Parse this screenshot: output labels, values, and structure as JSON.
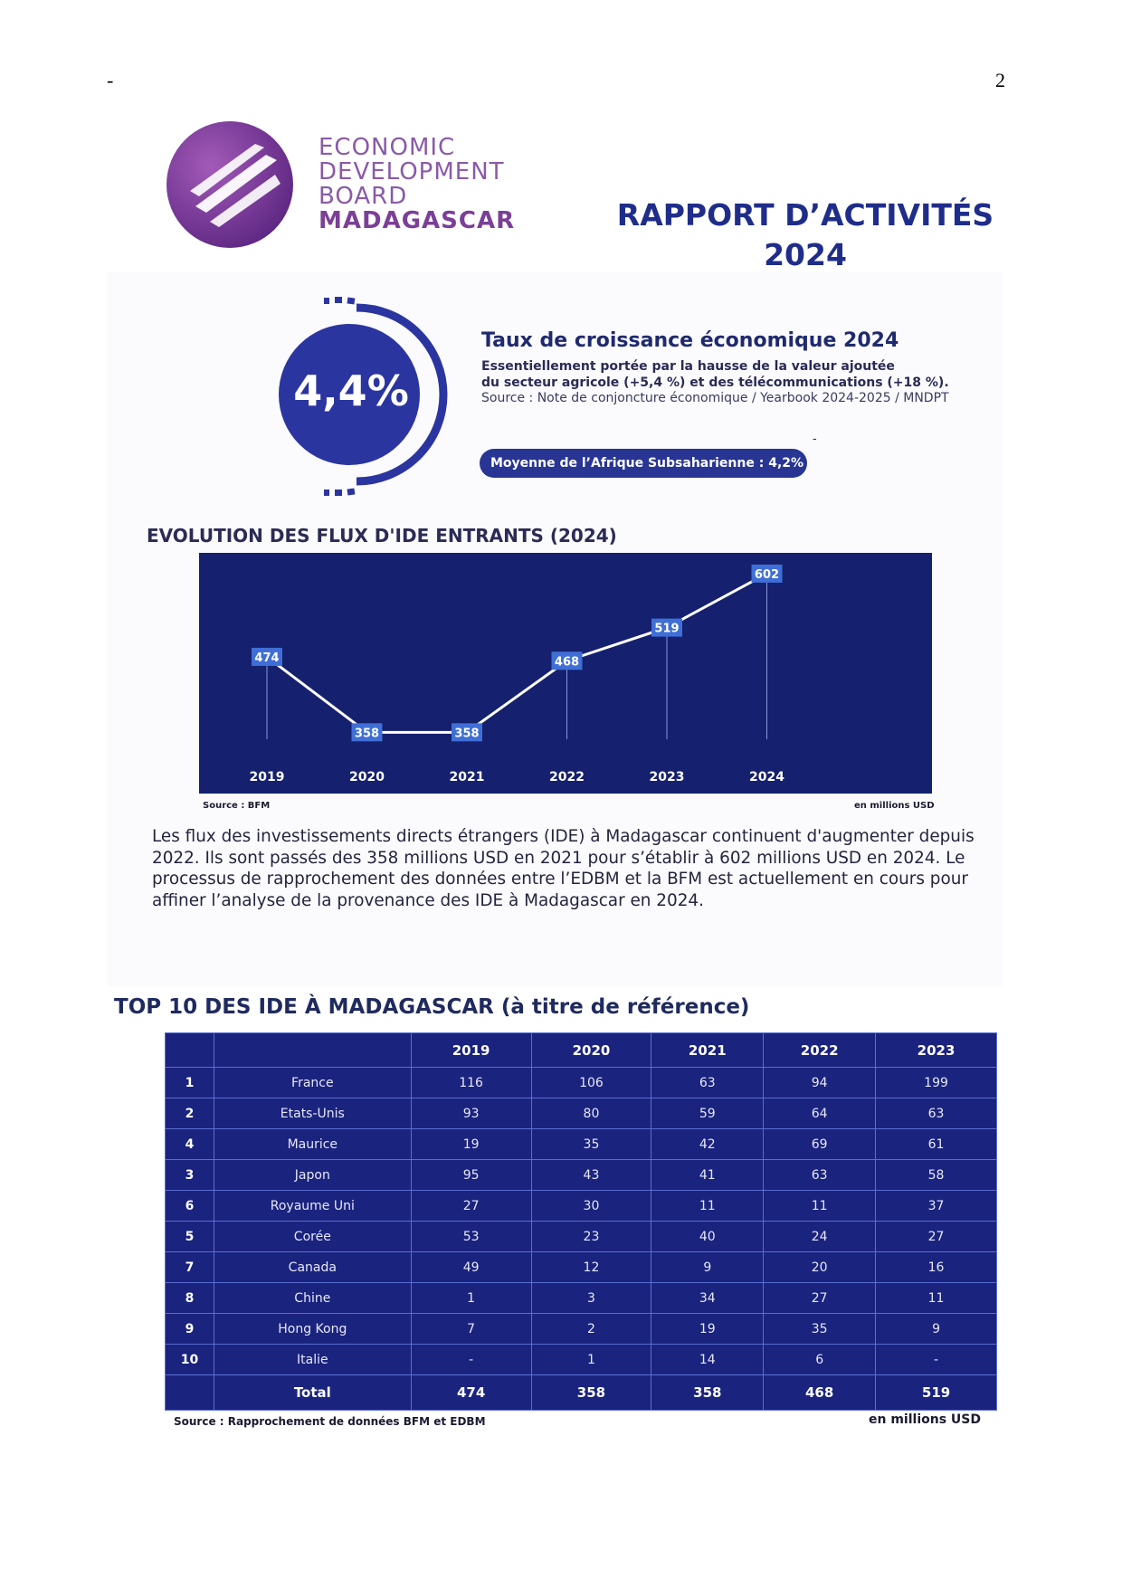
{
  "page": {
    "dash": "-",
    "number": "2"
  },
  "logo": {
    "line1": "ECONOMIC",
    "line2": "DEVELOPMENT",
    "line3": "BOARD",
    "line4": "MADAGASCAR"
  },
  "report": {
    "title_line1": "RAPPORT D’ACTIVITÉS",
    "title_line2": "2024"
  },
  "growth": {
    "value": "4,4%",
    "title": "Taux de croissance économique 2024",
    "desc_line1": "Essentiellement portée par la hausse de la valeur ajoutée",
    "desc_line2": "du secteur agricole (+5,4 %) et des télécommunications (+18 %).",
    "source": "Source : Note de conjoncture économique / Yearbook 2024-2025 / MNDPT",
    "average": "Moyenne de l’Afrique Subsaharienne : 4,2%",
    "dash": "-"
  },
  "chart_data": {
    "type": "line",
    "title": "EVOLUTION DES FLUX D'IDE ENTRANTS (2024)",
    "categories": [
      "2019",
      "2020",
      "2021",
      "2022",
      "2023",
      "2024"
    ],
    "values": [
      474,
      358,
      358,
      468,
      519,
      602
    ],
    "source": "Source : BFM",
    "unit": "en millions USD",
    "accent_color": "#15206e",
    "label_color": "#3f6fd6"
  },
  "body_text": "Les flux des investissements directs étrangers (IDE) à Madagascar continuent d'augmenter depuis 2022. Ils sont passés des 358 millions USD en 2021 pour s’établir à 602 millions USD en 2024. Le processus de rapprochement des données entre l’EDBM et la BFM est actuellement en cours pour affiner l’analyse de la provenance des IDE à Madagascar en 2024.",
  "table": {
    "title": "TOP 10 DES IDE À MADAGASCAR (à titre de référence)",
    "headers": [
      "",
      "",
      "2019",
      "2020",
      "2021",
      "2022",
      "2023"
    ],
    "rows": [
      [
        "1",
        "France",
        "116",
        "106",
        "63",
        "94",
        "199"
      ],
      [
        "2",
        "Etats-Unis",
        "93",
        "80",
        "59",
        "64",
        "63"
      ],
      [
        "4",
        "Maurice",
        "19",
        "35",
        "42",
        "69",
        "61"
      ],
      [
        "3",
        "Japon",
        "95",
        "43",
        "41",
        "63",
        "58"
      ],
      [
        "6",
        "Royaume Uni",
        "27",
        "30",
        "11",
        "11",
        "37"
      ],
      [
        "5",
        "Corée",
        "53",
        "23",
        "40",
        "24",
        "27"
      ],
      [
        "7",
        "Canada",
        "49",
        "12",
        "9",
        "20",
        "16"
      ],
      [
        "8",
        "Chine",
        "1",
        "3",
        "34",
        "27",
        "11"
      ],
      [
        "9",
        "Hong Kong",
        "7",
        "2",
        "19",
        "35",
        "9"
      ],
      [
        "10",
        "Italie",
        "-",
        "1",
        "14",
        "6",
        "-"
      ]
    ],
    "total": [
      "",
      "Total",
      "474",
      "358",
      "358",
      "468",
      "519"
    ],
    "source": "Source : Rapprochement de données BFM et EDBM",
    "unit": "en millions USD"
  }
}
